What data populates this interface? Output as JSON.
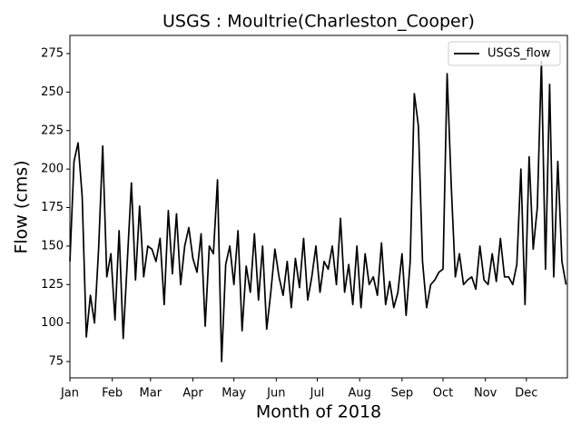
{
  "chart_data": {
    "type": "line",
    "title": "USGS : Moultrie(Charleston_Cooper)",
    "x_label": "Month of 2018",
    "y_label": "Flow (cms)",
    "legend_position": "upper right",
    "xlim": [
      0,
      364
    ],
    "ylim": [
      64.4,
      286.8
    ],
    "xticks": [
      {
        "value": 0,
        "label": "Jan"
      },
      {
        "value": 31,
        "label": "Feb"
      },
      {
        "value": 59,
        "label": "Mar"
      },
      {
        "value": 90,
        "label": "Apr"
      },
      {
        "value": 120,
        "label": "May"
      },
      {
        "value": 151,
        "label": "Jun"
      },
      {
        "value": 181,
        "label": "Jul"
      },
      {
        "value": 212,
        "label": "Aug"
      },
      {
        "value": 243,
        "label": "Sep"
      },
      {
        "value": 273,
        "label": "Oct"
      },
      {
        "value": 304,
        "label": "Nov"
      },
      {
        "value": 334,
        "label": "Dec"
      }
    ],
    "yticks": [
      75,
      100,
      125,
      150,
      175,
      200,
      225,
      250,
      275
    ],
    "x": [
      0,
      3,
      6,
      9,
      12,
      15,
      18,
      21,
      24,
      27,
      30,
      33,
      36,
      39,
      42,
      45,
      48,
      51,
      54,
      57,
      60,
      63,
      66,
      69,
      72,
      75,
      78,
      81,
      84,
      87,
      90,
      93,
      96,
      99,
      102,
      105,
      108,
      111,
      114,
      117,
      120,
      123,
      126,
      129,
      132,
      135,
      138,
      141,
      144,
      147,
      150,
      153,
      156,
      159,
      162,
      165,
      168,
      171,
      174,
      177,
      180,
      183,
      186,
      189,
      192,
      195,
      198,
      201,
      204,
      207,
      210,
      213,
      216,
      219,
      222,
      225,
      228,
      231,
      234,
      237,
      240,
      243,
      246,
      249,
      252,
      255,
      258,
      261,
      264,
      267,
      270,
      273,
      276,
      279,
      282,
      285,
      288,
      291,
      294,
      297,
      300,
      303,
      306,
      309,
      312,
      315,
      318,
      321,
      324,
      327,
      330,
      333,
      336,
      339,
      342,
      345,
      348,
      351,
      354,
      357,
      360,
      363
    ],
    "series": [
      {
        "name": "USGS_flow",
        "color": "#000000",
        "values": [
          140,
          205,
          217,
          182,
          91,
          118,
          100,
          148,
          215,
          130,
          145,
          102,
          160,
          90,
          140,
          191,
          128,
          176,
          130,
          150,
          148,
          140,
          155,
          112,
          173,
          132,
          171,
          125,
          150,
          162,
          142,
          133,
          158,
          98,
          150,
          145,
          193,
          75,
          138,
          150,
          125,
          160,
          95,
          137,
          120,
          158,
          115,
          150,
          96,
          120,
          148,
          130,
          118,
          140,
          110,
          142,
          123,
          155,
          115,
          130,
          150,
          120,
          140,
          135,
          150,
          125,
          168,
          120,
          138,
          112,
          150,
          110,
          145,
          125,
          130,
          118,
          152,
          112,
          127,
          110,
          120,
          145,
          105,
          140,
          249,
          228,
          140,
          110,
          125,
          128,
          133,
          135,
          262,
          190,
          130,
          145,
          125,
          128,
          130,
          122,
          150,
          128,
          125,
          145,
          127,
          155,
          130,
          130,
          125,
          138,
          200,
          112,
          208,
          148,
          175,
          270,
          135,
          255,
          130,
          205,
          140,
          125
        ]
      }
    ]
  }
}
